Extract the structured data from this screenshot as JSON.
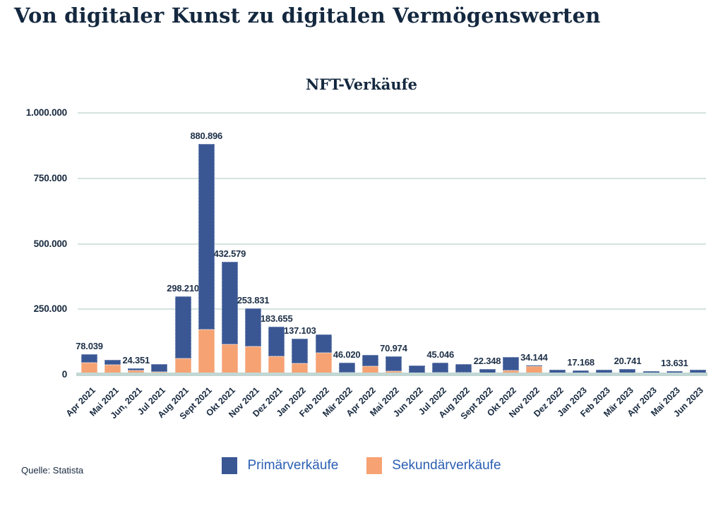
{
  "page": {
    "title": "Von digitaler Kunst zu digitalen Vermögenswerten",
    "source": "Quelle: Statista"
  },
  "chart_data": {
    "type": "bar",
    "stacked": true,
    "title": "NFT-Verkäufe",
    "categories": [
      "Apr 2021",
      "Mai 2021",
      "Jun, 2021",
      "Jul 2021",
      "Aug 2021",
      "Sept 2021",
      "Okt 2021",
      "Nov 2021",
      "Dez 2021",
      "Jan 2022",
      "Feb 2022",
      "Mär 2022",
      "Apr 2022",
      "Mai 2022",
      "Jun 2022",
      "Jul 2022",
      "Aug 2022",
      "Sept 2022",
      "Okt 2022",
      "Nov 2022",
      "Dez 2022",
      "Jan 2023",
      "Feb 2023",
      "Mär 2023",
      "Apr 2023",
      "Mai 2023",
      "Jun 2023"
    ],
    "series": [
      {
        "name": "Primärverkäufe",
        "color": "#3a5794",
        "values": [
          31039,
          19000,
          7351,
          28000,
          235210,
          708896,
          316579,
          144831,
          113655,
          95103,
          71000,
          38020,
          44000,
          57974,
          30000,
          37046,
          33000,
          18348,
          50000,
          2144,
          17000,
          16168,
          17000,
          19241,
          12000,
          10631,
          17000
        ]
      },
      {
        "name": "Sekundärverkäufe",
        "color": "#f6a273",
        "values": [
          47000,
          37000,
          17000,
          12000,
          63000,
          172000,
          116000,
          109000,
          70000,
          42000,
          83000,
          8000,
          32000,
          13000,
          5000,
          8000,
          8000,
          4000,
          17000,
          32000,
          1000,
          1000,
          1000,
          1500,
          1000,
          3000,
          1000
        ]
      }
    ],
    "totals": [
      78039,
      56000,
      24351,
      40000,
      298210,
      880896,
      432579,
      253831,
      183655,
      137103,
      154000,
      46020,
      76000,
      70974,
      35000,
      45046,
      41000,
      22348,
      67000,
      34144,
      18000,
      17168,
      18000,
      20741,
      13000,
      13631,
      18000
    ],
    "bar_labels": [
      "78.039",
      null,
      "24.351",
      null,
      "298.210",
      "880.896",
      "432.579",
      "253.831",
      "183.655",
      "137.103",
      null,
      "46.020",
      null,
      "70.974",
      null,
      "45.046",
      null,
      "22.348",
      null,
      "34.144",
      null,
      "17.168",
      null,
      "20.741",
      null,
      "13.631",
      null
    ],
    "y_ticks": [
      {
        "value": 1000000,
        "label": "1.000.000"
      },
      {
        "value": 750000,
        "label": "750.000"
      },
      {
        "value": 500000,
        "label": "500.000"
      },
      {
        "value": 250000,
        "label": "250.000"
      },
      {
        "value": 0,
        "label": "0"
      }
    ],
    "ylim": [
      0,
      1000000
    ],
    "grid": true,
    "legend_position": "bottom"
  }
}
